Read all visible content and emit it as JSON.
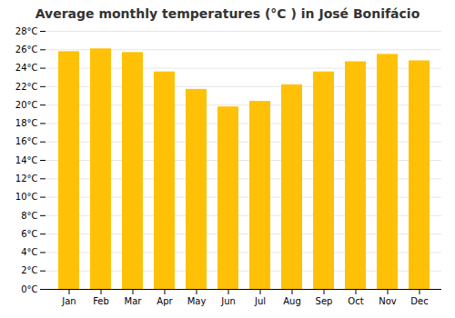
{
  "chart_data": {
    "type": "bar",
    "title": "Average monthly temperatures (°C ) in José Bonifácio",
    "categories": [
      "Jan",
      "Feb",
      "Mar",
      "Apr",
      "May",
      "Jun",
      "Jul",
      "Aug",
      "Sep",
      "Oct",
      "Nov",
      "Dec"
    ],
    "values": [
      25.8,
      26.1,
      25.7,
      23.6,
      21.7,
      19.8,
      20.4,
      22.2,
      23.6,
      24.7,
      25.5,
      24.8
    ],
    "color": "#FFC107",
    "ylim": [
      0,
      28
    ],
    "yticks": [
      {
        "value": 0,
        "label": "0°C"
      },
      {
        "value": 2,
        "label": "2°C"
      },
      {
        "value": 4,
        "label": "4°C"
      },
      {
        "value": 6,
        "label": "6°C"
      },
      {
        "value": 8,
        "label": "8°C"
      },
      {
        "value": 10,
        "label": "10°C"
      },
      {
        "value": 12,
        "label": "12°C"
      },
      {
        "value": 14,
        "label": "14°C"
      },
      {
        "value": 16,
        "label": "16°C"
      },
      {
        "value": 18,
        "label": "18°C"
      },
      {
        "value": 20,
        "label": "20°C"
      },
      {
        "value": 22,
        "label": "22°C"
      },
      {
        "value": 24,
        "label": "24°C"
      },
      {
        "value": 26,
        "label": "26°C"
      },
      {
        "value": 28,
        "label": "28°C"
      }
    ],
    "grid": true
  }
}
